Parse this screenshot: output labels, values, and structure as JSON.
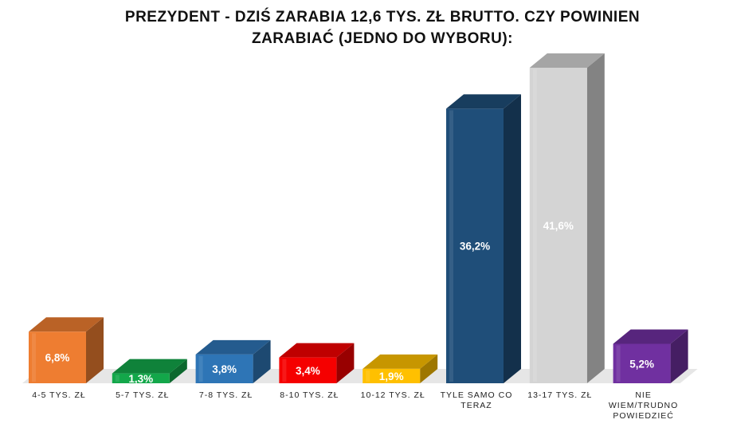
{
  "chart_data": {
    "type": "bar",
    "title_lines": [
      "PREZYDENT - DZIŚ ZARABIA 12,6 TYS. ZŁ BRUTTO. CZY POWINIEN",
      "ZARABIAĆ (JEDNO DO WYBORU):"
    ],
    "categories": [
      [
        "4-5 TYS. ZŁ"
      ],
      [
        "5-7 TYS. ZŁ"
      ],
      [
        "7-8 TYS. ZŁ"
      ],
      [
        "8-10 TYS. ZŁ"
      ],
      [
        "10-12 TYS. ZŁ"
      ],
      [
        "TYLE SAMO CO",
        "TERAZ"
      ],
      [
        "13-17 TYS. ZŁ"
      ],
      [
        "NIE",
        "WIEM/TRUDNO",
        "POWIEDZIEĆ"
      ]
    ],
    "values": [
      6.8,
      1.3,
      3.8,
      3.4,
      1.9,
      36.2,
      41.6,
      5.2
    ],
    "value_labels": [
      "6,8%",
      "1,3%",
      "3,8%",
      "3,4%",
      "1,9%",
      "36,2%",
      "41,6%",
      "5,2%"
    ],
    "colors": [
      "#ee7d31",
      "#13a74a",
      "#2e75b6",
      "#f50000",
      "#ffc000",
      "#1f4e79",
      "#d4d4d4",
      "#7030a0"
    ],
    "label_colors": [
      "#ffffff",
      "#ffffff",
      "#ffffff",
      "#ffffff",
      "#ffffff",
      "#ffffff",
      "#ffffff",
      "#ffffff"
    ],
    "ylim": [
      0,
      45
    ],
    "bar_style": "3d",
    "grid": false,
    "legend": "none"
  }
}
